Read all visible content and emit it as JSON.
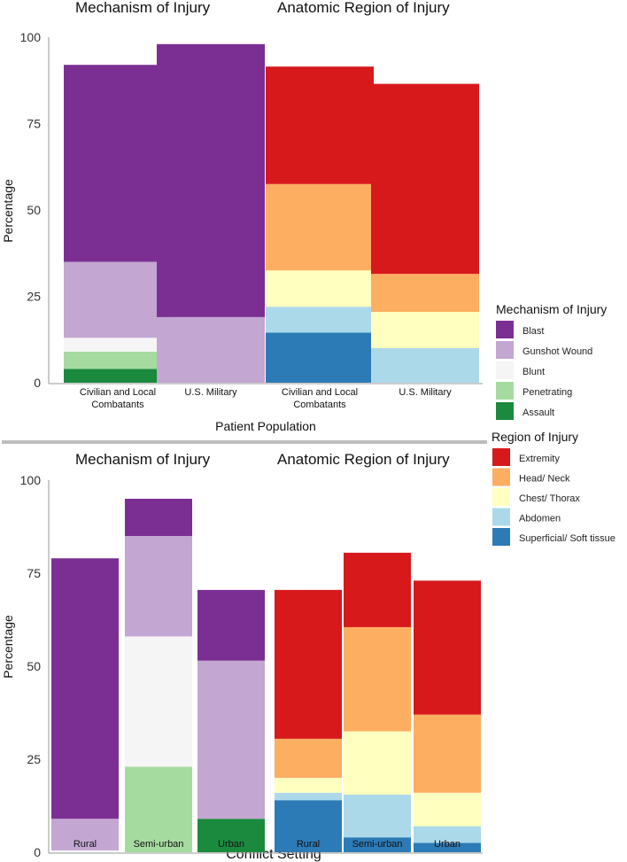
{
  "chart_data": [
    {
      "type": "bar",
      "stacked": true,
      "section_titles": [
        "Mechanism of Injury",
        "Anatomic Region of Injury"
      ],
      "ylabel": "Percentage",
      "xlabel": "Patient Population",
      "ylim": [
        0,
        100
      ],
      "yticks": [
        "0",
        "25",
        "50",
        "75",
        "100"
      ],
      "bars": [
        {
          "label": "Civilian and Local Combatants",
          "group": "mechanism",
          "segments": [
            [
              "Assault",
              4
            ],
            [
              "Penetrating",
              5
            ],
            [
              "Blunt",
              4
            ],
            [
              "Gunshot Wound",
              22
            ],
            [
              "Blast",
              57
            ]
          ]
        },
        {
          "label": "U.S. Military",
          "group": "mechanism",
          "segments": [
            [
              "Gunshot Wound",
              19
            ],
            [
              "Blast",
              79
            ]
          ]
        },
        {
          "label": "Civilian and Local Combatants",
          "group": "region",
          "segments": [
            [
              "Superficial/ Soft tissue",
              14.5
            ],
            [
              "Abdomen",
              7.5
            ],
            [
              "Chest/ Thorax",
              10.5
            ],
            [
              "Head/ Neck",
              25
            ],
            [
              "Extremity",
              34
            ]
          ]
        },
        {
          "label": "U.S. Military",
          "group": "region",
          "segments": [
            [
              "Abdomen",
              10
            ],
            [
              "Chest/ Thorax",
              10.5
            ],
            [
              "Head/ Neck",
              11
            ],
            [
              "Extremity",
              55
            ]
          ]
        }
      ]
    },
    {
      "type": "bar",
      "stacked": true,
      "section_titles": [
        "Mechanism of Injury",
        "Anatomic Region of Injury"
      ],
      "ylabel": "Percentage",
      "xlabel": "Conflict Setting",
      "ylim": [
        0,
        100
      ],
      "yticks": [
        "0",
        "25",
        "50",
        "75",
        "100"
      ],
      "bars": [
        {
          "label": "Rural",
          "group": "mechanism",
          "segments": [
            [
              "Blunt",
              0.5
            ],
            [
              "Gunshot Wound",
              8.5
            ],
            [
              "Blast",
              70
            ]
          ]
        },
        {
          "label": "Semi-urban",
          "group": "mechanism",
          "segments": [
            [
              "Penetrating",
              23
            ],
            [
              "Blunt",
              35
            ],
            [
              "Gunshot Wound",
              27
            ],
            [
              "Blast",
              10
            ]
          ]
        },
        {
          "label": "Urban",
          "group": "mechanism",
          "segments": [
            [
              "Assault",
              9
            ],
            [
              "Gunshot Wound",
              42.5
            ],
            [
              "Blast",
              19
            ]
          ]
        },
        {
          "label": "Rural",
          "group": "region",
          "segments": [
            [
              "Superficial/ Soft tissue",
              14
            ],
            [
              "Abdomen",
              2
            ],
            [
              "Chest/ Thorax",
              4
            ],
            [
              "Head/ Neck",
              10.5
            ],
            [
              "Extremity",
              40
            ]
          ]
        },
        {
          "label": "Semi-urban",
          "group": "region",
          "segments": [
            [
              "Superficial/ Soft tissue",
              4
            ],
            [
              "Abdomen",
              11.5
            ],
            [
              "Chest/ Thorax",
              17
            ],
            [
              "Head/ Neck",
              28
            ],
            [
              "Extremity",
              20
            ]
          ]
        },
        {
          "label": "Urban",
          "group": "region",
          "segments": [
            [
              "Superficial/ Soft tissue",
              2.5
            ],
            [
              "Abdomen",
              4.5
            ],
            [
              "Chest/ Thorax",
              9
            ],
            [
              "Head/ Neck",
              21
            ],
            [
              "Extremity",
              36
            ]
          ]
        }
      ]
    }
  ],
  "legend": {
    "mechanism": {
      "title": "Mechanism of Injury",
      "items": [
        {
          "name": "Blast",
          "color": "#7b2f93"
        },
        {
          "name": "Gunshot Wound",
          "color": "#c3a6d1"
        },
        {
          "name": "Blunt",
          "color": "#f5f5f5"
        },
        {
          "name": "Penetrating",
          "color": "#a6dba0"
        },
        {
          "name": "Assault",
          "color": "#1b8a3e"
        }
      ]
    },
    "region": {
      "title": "Region of Injury",
      "items": [
        {
          "name": "Extremity",
          "color": "#d7191c"
        },
        {
          "name": "Head/ Neck",
          "color": "#fdae61"
        },
        {
          "name": "Chest/ Thorax",
          "color": "#ffffbf"
        },
        {
          "name": "Abdomen",
          "color": "#abd9e9"
        },
        {
          "name": "Superficial/ Soft tissue",
          "color": "#2c7bb6"
        }
      ]
    }
  }
}
